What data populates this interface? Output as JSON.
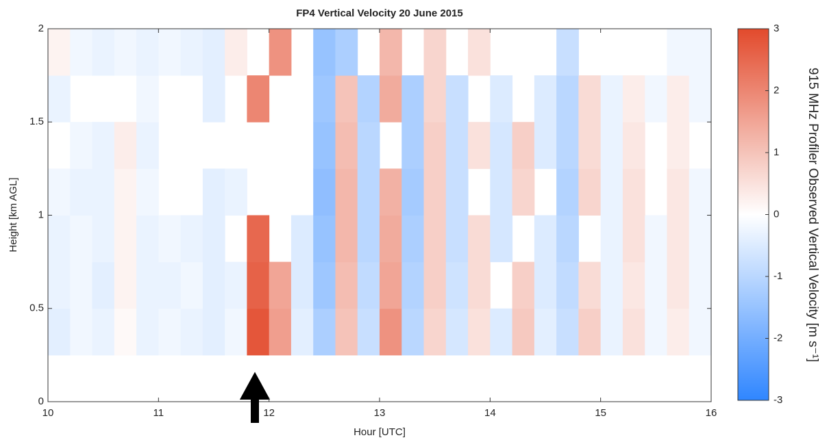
{
  "chart_data": {
    "type": "heatmap",
    "title": "FP4 Vertical Velocity 20 June 2015",
    "x_label": "Hour [UTC]",
    "y_label": "Height [km AGL]",
    "colorbar_label": "915 MHz Profiler Observed Vertical Velocity [m s⁻¹]",
    "xlim": [
      10,
      16
    ],
    "xticks": [
      10,
      11,
      12,
      13,
      14,
      15,
      16
    ],
    "ylim": [
      0,
      2
    ],
    "yticks": [
      0,
      0.5,
      1,
      1.5,
      2
    ],
    "clim": [
      -3,
      3
    ],
    "cticks": [
      -3,
      -2,
      -1,
      0,
      1,
      2,
      3
    ],
    "colors": {
      "negative": "#2f86ff",
      "zero": "#ffffff",
      "positive": "#e24a2c"
    },
    "x": [
      10.1,
      10.3,
      10.5,
      10.7,
      10.9,
      11.1,
      11.3,
      11.5,
      11.7,
      11.9,
      12.1,
      12.3,
      12.5,
      12.7,
      12.9,
      13.1,
      13.3,
      13.5,
      13.7,
      13.9,
      14.1,
      14.3,
      14.5,
      14.7,
      14.9,
      15.1,
      15.3,
      15.5,
      15.7,
      15.9
    ],
    "y": [
      0.375,
      0.625,
      0.875,
      1.125,
      1.375,
      1.625,
      1.875
    ],
    "z": [
      [
        -0.4,
        -0.2,
        -0.3,
        0.1,
        -0.3,
        -0.2,
        -0.3,
        -0.4,
        -0.2,
        2.8,
        1.6,
        -0.4,
        -1.2,
        1.0,
        -0.8,
        1.8,
        -1.0,
        0.7,
        -0.6,
        0.5,
        -0.5,
        0.9,
        -0.4,
        -0.8,
        0.8,
        -0.3,
        0.5,
        -0.2,
        0.3,
        -0.2
      ],
      [
        -0.3,
        -0.2,
        -0.4,
        0.2,
        -0.3,
        -0.3,
        -0.2,
        -0.4,
        -0.3,
        2.6,
        1.5,
        -0.5,
        -1.4,
        1.1,
        -0.9,
        1.5,
        -1.1,
        0.8,
        -0.7,
        0.6,
        null,
        0.8,
        -0.5,
        -0.9,
        0.6,
        -0.3,
        0.4,
        -0.2,
        0.4,
        -0.2
      ],
      [
        -0.3,
        -0.2,
        -0.3,
        0.2,
        -0.3,
        -0.2,
        -0.3,
        -0.4,
        null,
        2.5,
        null,
        -0.5,
        -1.5,
        1.2,
        -1.0,
        1.4,
        -1.2,
        0.8,
        -0.8,
        0.6,
        -0.6,
        null,
        -0.5,
        -1.0,
        null,
        -0.3,
        0.5,
        -0.2,
        0.4,
        -0.2
      ],
      [
        -0.2,
        -0.3,
        -0.3,
        0.2,
        -0.2,
        null,
        null,
        -0.4,
        -0.3,
        null,
        null,
        null,
        -1.6,
        1.2,
        -1.0,
        1.3,
        -1.3,
        0.8,
        -0.8,
        null,
        -0.6,
        0.7,
        null,
        -1.1,
        0.7,
        -0.3,
        0.5,
        null,
        0.4,
        -0.2
      ],
      [
        null,
        -0.2,
        -0.3,
        0.3,
        -0.3,
        null,
        null,
        null,
        null,
        null,
        null,
        null,
        -1.5,
        1.1,
        -1.0,
        null,
        -1.2,
        0.8,
        -0.8,
        0.5,
        -0.6,
        0.8,
        -0.5,
        -1.0,
        0.6,
        -0.3,
        0.4,
        null,
        0.3,
        null
      ],
      [
        -0.3,
        null,
        null,
        null,
        -0.2,
        null,
        null,
        -0.4,
        null,
        2.0,
        null,
        null,
        -1.4,
        1.0,
        -1.1,
        1.4,
        -1.2,
        0.7,
        -0.8,
        null,
        -0.5,
        null,
        -0.5,
        -1.0,
        0.6,
        -0.3,
        0.3,
        -0.2,
        0.3,
        -0.2
      ],
      [
        0.2,
        -0.2,
        -0.3,
        -0.2,
        -0.3,
        -0.2,
        -0.3,
        -0.4,
        0.3,
        null,
        1.8,
        null,
        -1.5,
        -1.2,
        null,
        1.2,
        null,
        0.7,
        null,
        0.5,
        null,
        null,
        null,
        -0.8,
        null,
        null,
        null,
        null,
        -0.2,
        -0.2
      ]
    ]
  }
}
